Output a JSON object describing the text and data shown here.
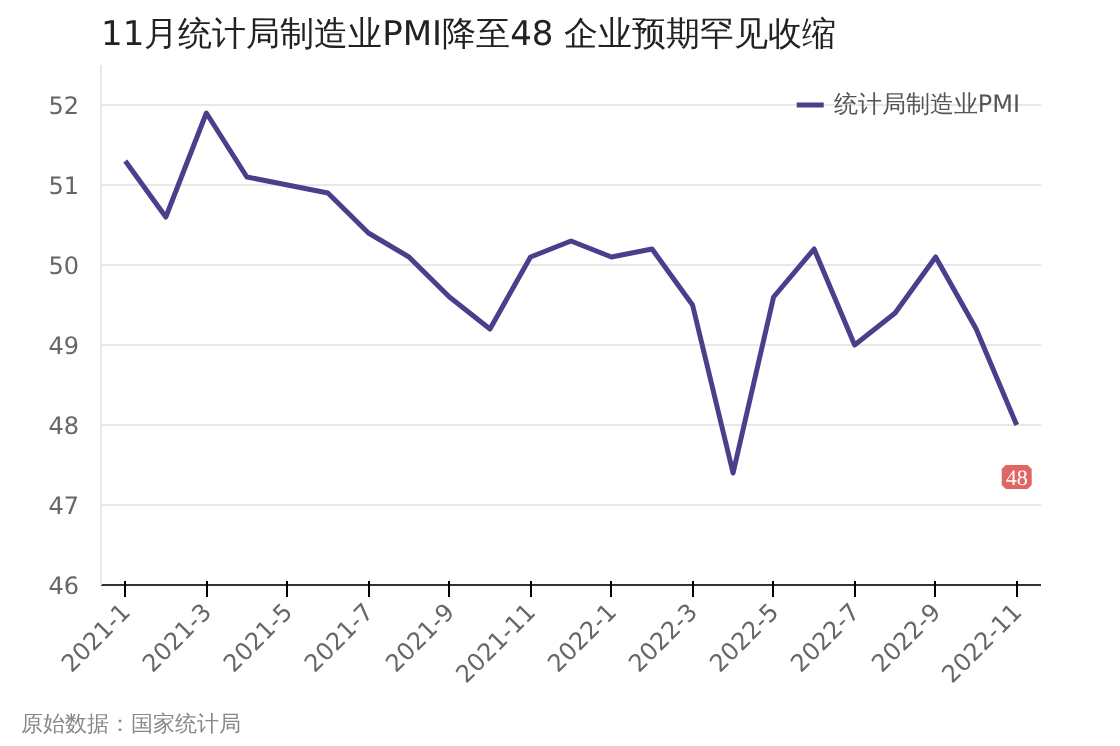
{
  "chart_data": {
    "type": "line",
    "title": "11月统计局制造业PMI降至48 企业预期罕见收缩",
    "categories": [
      "2021-1",
      null,
      "2021-3",
      null,
      "2021-5",
      null,
      "2021-7",
      null,
      "2021-9",
      null,
      "2021-11",
      null,
      "2022-1",
      null,
      "2022-3",
      null,
      "2022-5",
      null,
      "2022-7",
      null,
      "2022-9",
      null,
      "2022-11"
    ],
    "series": [
      {
        "name": "统计局制造业PMI",
        "color": "#4b3f8c",
        "values": [
          51.3,
          50.6,
          51.9,
          51.1,
          51.0,
          50.9,
          50.4,
          50.1,
          49.6,
          49.2,
          50.1,
          50.3,
          50.1,
          50.2,
          49.5,
          47.4,
          49.6,
          50.2,
          49.0,
          49.4,
          50.1,
          49.2,
          48.0
        ],
        "value_labels": [
          null,
          null,
          null,
          null,
          null,
          null,
          null,
          null,
          null,
          null,
          null,
          null,
          null,
          null,
          null,
          null,
          null,
          null,
          null,
          null,
          null,
          null,
          "48"
        ]
      }
    ],
    "ylim": [
      46,
      52.5
    ],
    "yticks": [
      46,
      47,
      48,
      49,
      50,
      51,
      52
    ],
    "grid": "y",
    "legend": "top right",
    "marker": "none",
    "line_style": "solid",
    "annotations": [
      "原始数据：国家统计局"
    ]
  }
}
